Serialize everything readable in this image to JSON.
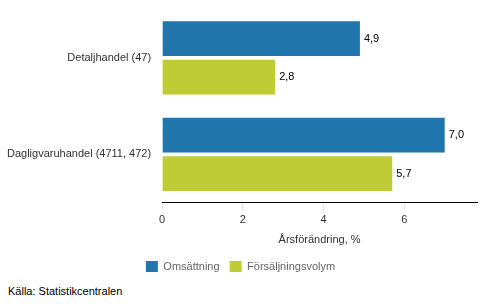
{
  "chart_data": {
    "type": "bar",
    "orientation": "horizontal",
    "categories": [
      "Detaljhandel (47)",
      "Dagligvaruhandel (4711, 472)"
    ],
    "series": [
      {
        "name": "Omsättning",
        "color": "#2176AE",
        "values": [
          4.9,
          7.0
        ],
        "value_labels": [
          "4,9",
          "7,0"
        ]
      },
      {
        "name": "Försäljningsvolym",
        "color": "#BFCC35",
        "values": [
          2.8,
          5.7
        ],
        "value_labels": [
          "2,8",
          "5,7"
        ]
      }
    ],
    "xlabel": "Årsförändring, %",
    "xlim": [
      0,
      7.8
    ],
    "xticks": [
      0,
      2,
      4,
      6
    ],
    "grid": false,
    "legend": "bottom",
    "data_labels": true,
    "annotations": [
      "Källa: Statistikcentralen"
    ]
  }
}
